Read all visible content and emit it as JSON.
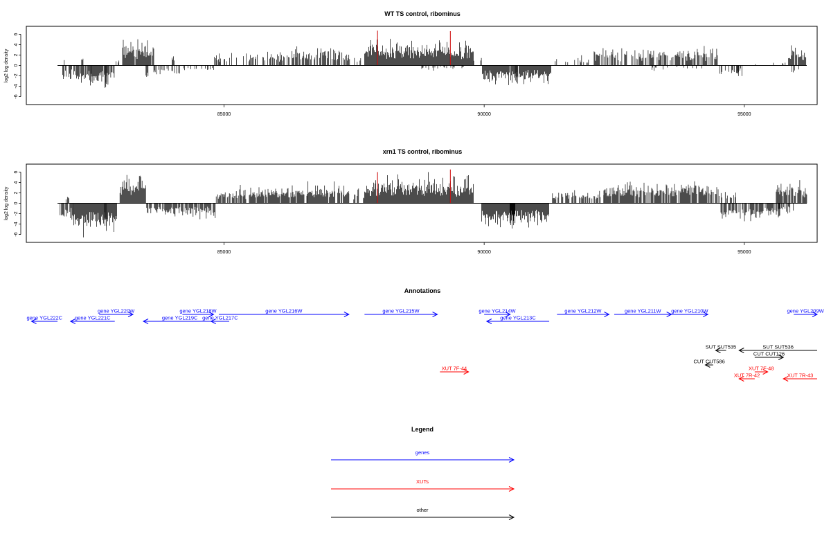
{
  "colors": {
    "genes": "#0000ff",
    "xuts": "#ff0000",
    "other": "#000000",
    "highlight": "#cc0000",
    "bars": "#000000"
  },
  "chart_data": [
    {
      "type": "bar",
      "title": "WT TS control, ribominus",
      "xlabel": "",
      "ylabel": "log2 log density",
      "xlim": [
        81200,
        96400
      ],
      "ylim": [
        -7,
        7
      ],
      "x_ticks": [
        85000,
        90000,
        95000
      ],
      "x_tick_labels": [
        "85000",
        "90000",
        "95000"
      ],
      "y_ticks": [
        -6,
        -4,
        -2,
        0,
        2,
        4,
        6
      ],
      "y_tick_labels": [
        "-6",
        "-4",
        "-2",
        "0",
        "2",
        "4",
        "6"
      ],
      "baseline": {
        "start": 81800,
        "end": 96200,
        "value": 0
      },
      "highlighted_bars": [
        {
          "x": 87950,
          "value": 6.7
        },
        {
          "x": 89350,
          "value": 6.6
        }
      ],
      "segments": [
        {
          "start": 81850,
          "end": 81950,
          "sign": 1,
          "amp": 2.0,
          "density": 0.2
        },
        {
          "start": 81900,
          "end": 82150,
          "sign": -1,
          "amp": 3.0,
          "density": 0.6
        },
        {
          "start": 82150,
          "end": 82450,
          "sign": -1,
          "amp": 4.0,
          "density": 0.8
        },
        {
          "start": 82250,
          "end": 82300,
          "sign": 1,
          "amp": 2.0,
          "density": 0.5
        },
        {
          "start": 82450,
          "end": 82900,
          "sign": -1,
          "amp": 3.5,
          "density": 0.9
        },
        {
          "start": 82700,
          "end": 82750,
          "sign": -1,
          "amp": 5.0,
          "density": 1.0
        },
        {
          "start": 82900,
          "end": 83000,
          "sign": 1,
          "amp": 1.5,
          "density": 0.4
        },
        {
          "start": 83050,
          "end": 83650,
          "sign": 1,
          "amp": 4.5,
          "density": 0.95
        },
        {
          "start": 83650,
          "end": 84200,
          "sign": -1,
          "amp": 1.8,
          "density": 0.45
        },
        {
          "start": 83500,
          "end": 83550,
          "sign": -1,
          "amp": 2.5,
          "density": 1.0
        },
        {
          "start": 84000,
          "end": 84050,
          "sign": 1,
          "amp": 2.0,
          "density": 1.0
        },
        {
          "start": 84200,
          "end": 84800,
          "sign": -1,
          "amp": 1.2,
          "density": 0.3
        },
        {
          "start": 84800,
          "end": 85200,
          "sign": 1,
          "amp": 2.5,
          "density": 0.35
        },
        {
          "start": 85200,
          "end": 86200,
          "sign": 1,
          "amp": 2.5,
          "density": 0.45
        },
        {
          "start": 86200,
          "end": 87400,
          "sign": 1,
          "amp": 3.5,
          "density": 0.7
        },
        {
          "start": 87400,
          "end": 87700,
          "sign": 1,
          "amp": 2.0,
          "density": 0.3
        },
        {
          "start": 87700,
          "end": 89800,
          "sign": 1,
          "amp": 4.5,
          "density": 1.0
        },
        {
          "start": 88800,
          "end": 89600,
          "sign": -1,
          "amp": 0.8,
          "density": 0.3
        },
        {
          "start": 89800,
          "end": 89950,
          "sign": 1,
          "amp": 1.5,
          "density": 0.4
        },
        {
          "start": 89950,
          "end": 91300,
          "sign": -1,
          "amp": 3.2,
          "density": 0.95
        },
        {
          "start": 90600,
          "end": 90650,
          "sign": -1,
          "amp": 4.8,
          "density": 1.0
        },
        {
          "start": 91300,
          "end": 92100,
          "sign": 1,
          "amp": 1.8,
          "density": 0.3
        },
        {
          "start": 92100,
          "end": 94500,
          "sign": 1,
          "amp": 3.2,
          "density": 0.6
        },
        {
          "start": 93200,
          "end": 94200,
          "sign": -1,
          "amp": 1.0,
          "density": 0.15
        },
        {
          "start": 94500,
          "end": 95000,
          "sign": -1,
          "amp": 1.8,
          "density": 0.3
        },
        {
          "start": 94850,
          "end": 94900,
          "sign": -1,
          "amp": 2.6,
          "density": 1.0
        },
        {
          "start": 95000,
          "end": 95850,
          "sign": 1,
          "amp": 0.8,
          "density": 0.1
        },
        {
          "start": 95850,
          "end": 96200,
          "sign": 1,
          "amp": 3.5,
          "density": 0.9
        },
        {
          "start": 95900,
          "end": 96050,
          "sign": -1,
          "amp": 2.2,
          "density": 0.4
        }
      ]
    },
    {
      "type": "bar",
      "title": "xrn1 TS control, ribominus",
      "xlabel": "",
      "ylabel": "log2 log density",
      "xlim": [
        81200,
        96400
      ],
      "ylim": [
        -7,
        7
      ],
      "x_ticks": [
        85000,
        90000,
        95000
      ],
      "x_tick_labels": [
        "85000",
        "90000",
        "95000"
      ],
      "y_ticks": [
        -6,
        -4,
        -2,
        0,
        2,
        4,
        6
      ],
      "y_tick_labels": [
        "-6",
        "-4",
        "-2",
        "0",
        "2",
        "4",
        "6"
      ],
      "baseline": {
        "start": 81800,
        "end": 96200,
        "value": 0
      },
      "highlighted_bars": [
        {
          "x": 87950,
          "value": 6.0
        },
        {
          "x": 89350,
          "value": 6.5
        }
      ],
      "segments": [
        {
          "start": 81850,
          "end": 82100,
          "sign": -1,
          "amp": 3.0,
          "density": 0.6
        },
        {
          "start": 81950,
          "end": 82050,
          "sign": 1,
          "amp": 1.5,
          "density": 0.4
        },
        {
          "start": 82100,
          "end": 82950,
          "sign": -1,
          "amp": 5.2,
          "density": 1.0
        },
        {
          "start": 82700,
          "end": 82750,
          "sign": -1,
          "amp": 6.5,
          "density": 1.0
        },
        {
          "start": 83000,
          "end": 83500,
          "sign": 1,
          "amp": 5.0,
          "density": 1.0
        },
        {
          "start": 83500,
          "end": 84850,
          "sign": -1,
          "amp": 2.5,
          "density": 0.8
        },
        {
          "start": 84850,
          "end": 85300,
          "sign": 1,
          "amp": 2.5,
          "density": 0.7
        },
        {
          "start": 85300,
          "end": 86600,
          "sign": 1,
          "amp": 3.2,
          "density": 0.85
        },
        {
          "start": 86600,
          "end": 87400,
          "sign": 1,
          "amp": 3.5,
          "density": 0.9
        },
        {
          "start": 87400,
          "end": 87700,
          "sign": 1,
          "amp": 2.5,
          "density": 0.5
        },
        {
          "start": 87700,
          "end": 89800,
          "sign": 1,
          "amp": 4.8,
          "density": 1.0
        },
        {
          "start": 89950,
          "end": 91250,
          "sign": -1,
          "amp": 4.2,
          "density": 1.0
        },
        {
          "start": 90500,
          "end": 90600,
          "sign": -1,
          "amp": 5.8,
          "density": 1.0
        },
        {
          "start": 91300,
          "end": 92300,
          "sign": 1,
          "amp": 2.2,
          "density": 0.6
        },
        {
          "start": 92300,
          "end": 94500,
          "sign": 1,
          "amp": 3.8,
          "density": 0.85
        },
        {
          "start": 94500,
          "end": 94850,
          "sign": 1,
          "amp": 2.0,
          "density": 0.4
        },
        {
          "start": 94550,
          "end": 95700,
          "sign": -1,
          "amp": 3.0,
          "density": 0.75
        },
        {
          "start": 95600,
          "end": 96200,
          "sign": 1,
          "amp": 4.0,
          "density": 0.9
        },
        {
          "start": 95650,
          "end": 95950,
          "sign": -1,
          "amp": 2.0,
          "density": 0.6
        }
      ]
    }
  ],
  "annotations": {
    "title": "Annotations",
    "xlim": [
      81200,
      96400
    ],
    "features": [
      {
        "label": "gene YGL222C",
        "kind": "gene",
        "start": 81300,
        "end": 81800,
        "strand": "-",
        "row": 1
      },
      {
        "label": "gene YGL221C",
        "kind": "gene",
        "start": 82050,
        "end": 82900,
        "strand": "-",
        "row": 1
      },
      {
        "label": "gene YGL220W",
        "kind": "gene",
        "start": 82600,
        "end": 83250,
        "strand": "+",
        "row": 0
      },
      {
        "label": "gene YGL219C",
        "kind": "gene",
        "start": 83450,
        "end": 84850,
        "strand": "-",
        "row": 1
      },
      {
        "label": "gene YGL218W",
        "kind": "gene",
        "start": 84200,
        "end": 84800,
        "strand": "+",
        "row": 0
      },
      {
        "label": "gene YGL217C",
        "kind": "gene",
        "start": 84750,
        "end": 85100,
        "strand": "-",
        "row": 1
      },
      {
        "label": "gene YGL216W",
        "kind": "gene",
        "start": 84900,
        "end": 87400,
        "strand": "+",
        "row": 0
      },
      {
        "label": "gene YGL215W",
        "kind": "gene",
        "start": 87700,
        "end": 89100,
        "strand": "+",
        "row": 0
      },
      {
        "label": "gene YGL214W",
        "kind": "gene",
        "start": 90000,
        "end": 90500,
        "strand": "+",
        "row": 0
      },
      {
        "label": "gene YGL213C",
        "kind": "gene",
        "start": 90050,
        "end": 91250,
        "strand": "-",
        "row": 1
      },
      {
        "label": "gene YGL212W",
        "kind": "gene",
        "start": 91400,
        "end": 92400,
        "strand": "+",
        "row": 0
      },
      {
        "label": "gene YGL211W",
        "kind": "gene",
        "start": 92500,
        "end": 93600,
        "strand": "+",
        "row": 0
      },
      {
        "label": "gene YGL210W",
        "kind": "gene",
        "start": 93600,
        "end": 94300,
        "strand": "+",
        "row": 0
      },
      {
        "label": "gene YGL209W",
        "kind": "gene",
        "start": 95950,
        "end": 96400,
        "strand": "+",
        "row": 0
      },
      {
        "label": "SUT SUT535",
        "kind": "other",
        "start": 94450,
        "end": 94650,
        "strand": "-",
        "row": 3
      },
      {
        "label": "SUT SUT536",
        "kind": "other",
        "start": 94900,
        "end": 96400,
        "strand": "-",
        "row": 3
      },
      {
        "label": "CUT CUT126",
        "kind": "other",
        "start": 95200,
        "end": 95750,
        "strand": "+",
        "row": 4
      },
      {
        "label": "CUT CUT586",
        "kind": "other",
        "start": 94250,
        "end": 94400,
        "strand": "-",
        "row": 5
      },
      {
        "label": "XUT 7F-44",
        "kind": "xut",
        "start": 89150,
        "end": 89700,
        "strand": "+",
        "row": 6
      },
      {
        "label": "XUT 7F-48",
        "kind": "xut",
        "start": 95200,
        "end": 95450,
        "strand": "+",
        "row": 6
      },
      {
        "label": "XUT 7R-42",
        "kind": "xut",
        "start": 94900,
        "end": 95200,
        "strand": "-",
        "row": 7
      },
      {
        "label": "XUT 7R-43",
        "kind": "xut",
        "start": 95750,
        "end": 96400,
        "strand": "-",
        "row": 7
      }
    ]
  },
  "legend": {
    "title": "Legend",
    "items": [
      {
        "label": "genes",
        "kind": "gene"
      },
      {
        "label": "XUTs",
        "kind": "xut"
      },
      {
        "label": "other",
        "kind": "other"
      }
    ]
  }
}
